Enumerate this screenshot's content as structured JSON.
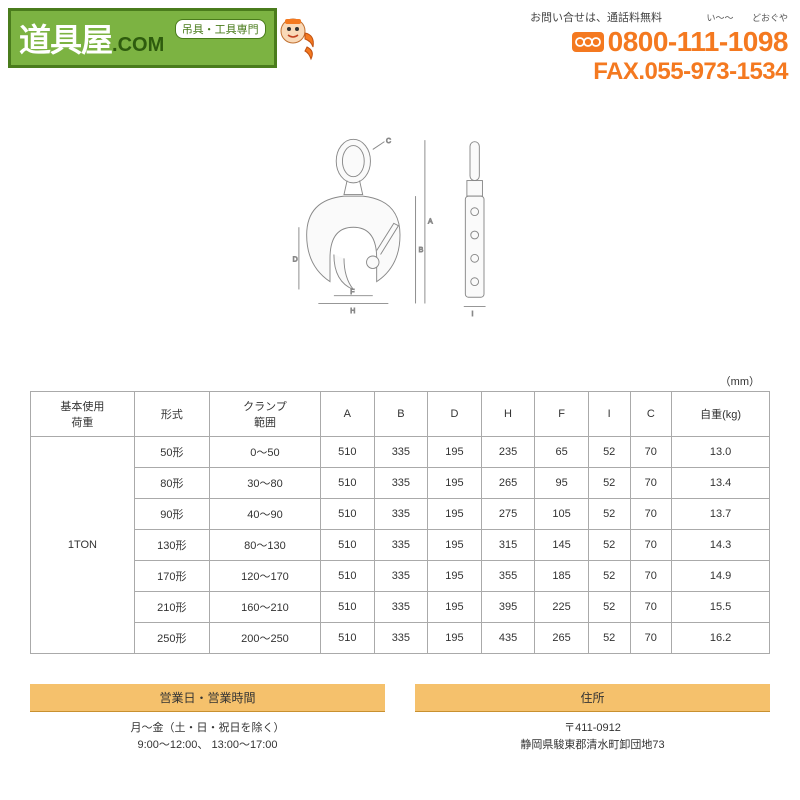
{
  "header": {
    "logo_main": "道具屋",
    "logo_com": ".COM",
    "logo_sub": "吊具・工具専門",
    "contact_note": "お問い合せは、通話料無料",
    "ruby_left": "い〜〜",
    "ruby_right": "どおぐや",
    "phone": "0800-111-1098",
    "fax": "FAX.055-973-1534"
  },
  "table": {
    "unit": "（mm）",
    "columns": [
      "基本使用\n荷重",
      "形式",
      "クランプ\n範囲",
      "A",
      "B",
      "D",
      "H",
      "F",
      "I",
      "C",
      "自重(kg)"
    ],
    "load_label": "1TON",
    "rows": [
      {
        "model": "50形",
        "range": "0〜50",
        "A": "510",
        "B": "335",
        "D": "195",
        "H": "235",
        "F": "65",
        "I": "52",
        "C": "70",
        "wt": "13.0"
      },
      {
        "model": "80形",
        "range": "30〜80",
        "A": "510",
        "B": "335",
        "D": "195",
        "H": "265",
        "F": "95",
        "I": "52",
        "C": "70",
        "wt": "13.4"
      },
      {
        "model": "90形",
        "range": "40〜90",
        "A": "510",
        "B": "335",
        "D": "195",
        "H": "275",
        "F": "105",
        "I": "52",
        "C": "70",
        "wt": "13.7"
      },
      {
        "model": "130形",
        "range": "80〜130",
        "A": "510",
        "B": "335",
        "D": "195",
        "H": "315",
        "F": "145",
        "I": "52",
        "C": "70",
        "wt": "14.3"
      },
      {
        "model": "170形",
        "range": "120〜170",
        "A": "510",
        "B": "335",
        "D": "195",
        "H": "355",
        "F": "185",
        "I": "52",
        "C": "70",
        "wt": "14.9"
      },
      {
        "model": "210形",
        "range": "160〜210",
        "A": "510",
        "B": "335",
        "D": "195",
        "H": "395",
        "F": "225",
        "I": "52",
        "C": "70",
        "wt": "15.5"
      },
      {
        "model": "250形",
        "range": "200〜250",
        "A": "510",
        "B": "335",
        "D": "195",
        "H": "435",
        "F": "265",
        "I": "52",
        "C": "70",
        "wt": "16.2"
      }
    ]
  },
  "footer": {
    "hours_head": "営業日・営業時間",
    "hours_body1": "月〜金（土・日・祝日を除く）",
    "hours_body2": "9:00〜12:00、 13:00〜17:00",
    "addr_head": "住所",
    "addr_body1": "〒411-0912",
    "addr_body2": "静岡県駿東郡清水町卸団地73"
  },
  "diagram": {
    "labels": {
      "A": "A",
      "B": "B",
      "C": "C",
      "D": "D",
      "F": "F",
      "H": "H",
      "I": "I"
    },
    "stroke": "#888888",
    "fill": "#f5f5f5"
  }
}
